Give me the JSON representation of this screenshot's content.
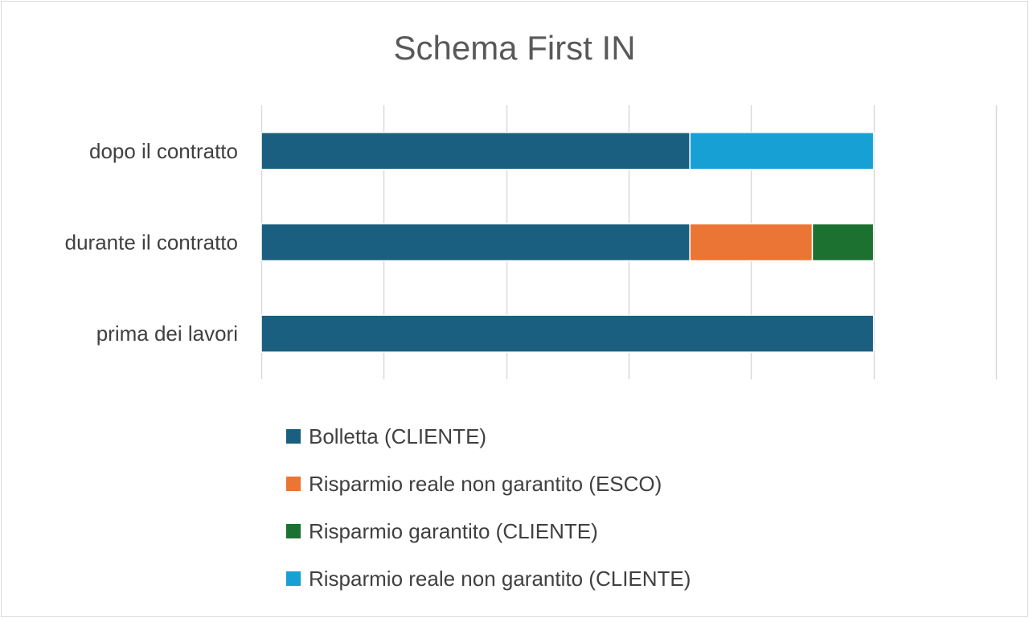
{
  "chart_data": {
    "type": "bar",
    "orientation": "horizontal",
    "stacked": true,
    "title": "Schema First IN",
    "categories": [
      "prima dei lavori",
      "durante il contratto",
      "dopo il contratto"
    ],
    "series": [
      {
        "name": "Bolletta (CLIENTE)",
        "color": "#1a5f80",
        "values": [
          100,
          70,
          70
        ]
      },
      {
        "name": "Risparmio reale non garantito (ESCO)",
        "color": "#ea7535",
        "values": [
          0,
          20,
          0
        ]
      },
      {
        "name": "Risparmio garantito (CLIENTE)",
        "color": "#1c7130",
        "values": [
          0,
          10,
          0
        ]
      },
      {
        "name": "Risparmio reale non garantito (CLIENTE)",
        "color": "#17a0d4",
        "values": [
          0,
          0,
          30
        ]
      }
    ],
    "xlim": [
      0,
      120
    ],
    "x_grid_step": 20,
    "grid": true,
    "x_tick_labels_shown": false,
    "legend_position": "bottom"
  }
}
